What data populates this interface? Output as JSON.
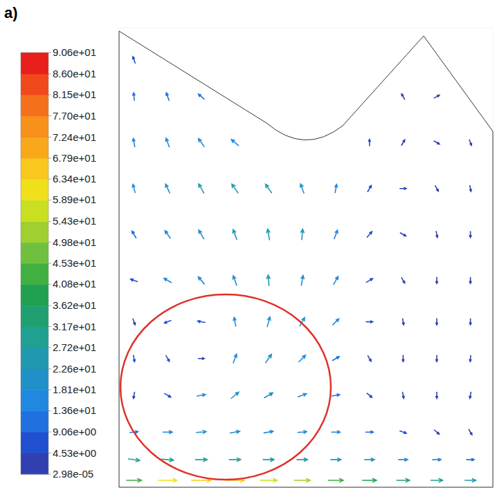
{
  "chart_data": {
    "type": "vector_field",
    "title": "a)",
    "xlim": [
      0,
      1
    ],
    "ylim": [
      0,
      1
    ],
    "tick_labels": false,
    "colorbar": {
      "range": [
        2.98e-05,
        90.6
      ],
      "ticks": [
        {
          "value": 2.98e-05,
          "label": "2.98e-05"
        },
        {
          "value": 4.53,
          "label": "4.53e+00"
        },
        {
          "value": 9.06,
          "label": "9.06e+00"
        },
        {
          "value": 13.6,
          "label": "1.36e+01"
        },
        {
          "value": 18.1,
          "label": "1.81e+01"
        },
        {
          "value": 22.6,
          "label": "2.26e+01"
        },
        {
          "value": 27.2,
          "label": "2.72e+01"
        },
        {
          "value": 31.7,
          "label": "3.17e+01"
        },
        {
          "value": 36.2,
          "label": "3.62e+01"
        },
        {
          "value": 40.8,
          "label": "4.08e+01"
        },
        {
          "value": 45.3,
          "label": "4.53e+01"
        },
        {
          "value": 49.8,
          "label": "4.98e+01"
        },
        {
          "value": 54.3,
          "label": "5.43e+01"
        },
        {
          "value": 58.9,
          "label": "5.89e+01"
        },
        {
          "value": 63.4,
          "label": "6.34e+01"
        },
        {
          "value": 67.9,
          "label": "6.79e+01"
        },
        {
          "value": 72.4,
          "label": "7.24e+01"
        },
        {
          "value": 77.0,
          "label": "7.70e+01"
        },
        {
          "value": 81.5,
          "label": "8.15e+01"
        },
        {
          "value": 86.0,
          "label": "8.60e+01"
        },
        {
          "value": 90.6,
          "label": "9.06e+01"
        }
      ],
      "colors": [
        "#3040b0",
        "#2050d0",
        "#2070e0",
        "#2088e0",
        "#2090c8",
        "#2098b0",
        "#20a090",
        "#20a070",
        "#20a050",
        "#40b040",
        "#70c040",
        "#a0d030",
        "#c8e020",
        "#f0e01c",
        "#f8c81c",
        "#f9a81c",
        "#f8901c",
        "#f5701c",
        "#f04a1c",
        "#e8201c"
      ]
    },
    "vectors": [
      {
        "x": 0.04,
        "y": 0.015,
        "speed": 45,
        "angle": 0
      },
      {
        "x": 0.13,
        "y": 0.015,
        "speed": 62,
        "angle": 0
      },
      {
        "x": 0.22,
        "y": 0.015,
        "speed": 66,
        "angle": 0
      },
      {
        "x": 0.31,
        "y": 0.015,
        "speed": 64,
        "angle": 0
      },
      {
        "x": 0.4,
        "y": 0.015,
        "speed": 55,
        "angle": 0
      },
      {
        "x": 0.49,
        "y": 0.015,
        "speed": 50,
        "angle": 0
      },
      {
        "x": 0.58,
        "y": 0.015,
        "speed": 45,
        "angle": 0
      },
      {
        "x": 0.67,
        "y": 0.015,
        "speed": 40,
        "angle": 0
      },
      {
        "x": 0.76,
        "y": 0.015,
        "speed": 35,
        "angle": 0
      },
      {
        "x": 0.85,
        "y": 0.015,
        "speed": 30,
        "angle": 0
      },
      {
        "x": 0.94,
        "y": 0.015,
        "speed": 25,
        "angle": 0
      },
      {
        "x": 0.04,
        "y": 0.06,
        "speed": 28,
        "angle": -8
      },
      {
        "x": 0.13,
        "y": 0.06,
        "speed": 30,
        "angle": -5
      },
      {
        "x": 0.22,
        "y": 0.06,
        "speed": 30,
        "angle": 0
      },
      {
        "x": 0.31,
        "y": 0.06,
        "speed": 28,
        "angle": 0
      },
      {
        "x": 0.4,
        "y": 0.06,
        "speed": 26,
        "angle": 0
      },
      {
        "x": 0.49,
        "y": 0.06,
        "speed": 24,
        "angle": 0
      },
      {
        "x": 0.58,
        "y": 0.06,
        "speed": 22,
        "angle": 0
      },
      {
        "x": 0.67,
        "y": 0.06,
        "speed": 20,
        "angle": 0
      },
      {
        "x": 0.76,
        "y": 0.06,
        "speed": 17,
        "angle": 0
      },
      {
        "x": 0.85,
        "y": 0.06,
        "speed": 14,
        "angle": 0
      },
      {
        "x": 0.94,
        "y": 0.06,
        "speed": 10,
        "angle": 0
      },
      {
        "x": 0.04,
        "y": 0.12,
        "speed": 12,
        "angle": 5
      },
      {
        "x": 0.13,
        "y": 0.12,
        "speed": 18,
        "angle": 0
      },
      {
        "x": 0.22,
        "y": 0.12,
        "speed": 20,
        "angle": 5
      },
      {
        "x": 0.31,
        "y": 0.12,
        "speed": 20,
        "angle": 10
      },
      {
        "x": 0.4,
        "y": 0.12,
        "speed": 18,
        "angle": 10
      },
      {
        "x": 0.49,
        "y": 0.12,
        "speed": 16,
        "angle": 5
      },
      {
        "x": 0.58,
        "y": 0.12,
        "speed": 14,
        "angle": 0
      },
      {
        "x": 0.67,
        "y": 0.12,
        "speed": 10,
        "angle": 0
      },
      {
        "x": 0.76,
        "y": 0.12,
        "speed": 6,
        "angle": -20
      },
      {
        "x": 0.85,
        "y": 0.12,
        "speed": 4,
        "angle": -40
      },
      {
        "x": 0.94,
        "y": 0.12,
        "speed": 3,
        "angle": -60
      },
      {
        "x": 0.04,
        "y": 0.2,
        "speed": 4,
        "angle": -100
      },
      {
        "x": 0.13,
        "y": 0.2,
        "speed": 8,
        "angle": -30
      },
      {
        "x": 0.22,
        "y": 0.2,
        "speed": 14,
        "angle": 10
      },
      {
        "x": 0.31,
        "y": 0.2,
        "speed": 20,
        "angle": 40
      },
      {
        "x": 0.4,
        "y": 0.2,
        "speed": 20,
        "angle": 30
      },
      {
        "x": 0.49,
        "y": 0.2,
        "speed": 16,
        "angle": 20
      },
      {
        "x": 0.58,
        "y": 0.2,
        "speed": 10,
        "angle": 10
      },
      {
        "x": 0.67,
        "y": 0.2,
        "speed": 4,
        "angle": -40
      },
      {
        "x": 0.76,
        "y": 0.2,
        "speed": 3,
        "angle": -80
      },
      {
        "x": 0.85,
        "y": 0.2,
        "speed": 3,
        "angle": -90
      },
      {
        "x": 0.94,
        "y": 0.2,
        "speed": 3,
        "angle": -100
      },
      {
        "x": 0.04,
        "y": 0.28,
        "speed": 5,
        "angle": -80
      },
      {
        "x": 0.13,
        "y": 0.28,
        "speed": 5,
        "angle": -60
      },
      {
        "x": 0.22,
        "y": 0.28,
        "speed": 2,
        "angle": 0
      },
      {
        "x": 0.31,
        "y": 0.28,
        "speed": 18,
        "angle": 70
      },
      {
        "x": 0.4,
        "y": 0.28,
        "speed": 22,
        "angle": 55
      },
      {
        "x": 0.49,
        "y": 0.28,
        "speed": 18,
        "angle": 45
      },
      {
        "x": 0.58,
        "y": 0.28,
        "speed": 10,
        "angle": 30
      },
      {
        "x": 0.67,
        "y": 0.28,
        "speed": 4,
        "angle": -60
      },
      {
        "x": 0.76,
        "y": 0.28,
        "speed": 3,
        "angle": -90
      },
      {
        "x": 0.85,
        "y": 0.28,
        "speed": 3,
        "angle": -90
      },
      {
        "x": 0.94,
        "y": 0.28,
        "speed": 2,
        "angle": -95
      },
      {
        "x": 0.04,
        "y": 0.36,
        "speed": 4,
        "angle": -70
      },
      {
        "x": 0.13,
        "y": 0.36,
        "speed": 7,
        "angle": 200
      },
      {
        "x": 0.22,
        "y": 0.36,
        "speed": 9,
        "angle": 170
      },
      {
        "x": 0.31,
        "y": 0.36,
        "speed": 16,
        "angle": 100
      },
      {
        "x": 0.4,
        "y": 0.36,
        "speed": 22,
        "angle": 75
      },
      {
        "x": 0.49,
        "y": 0.36,
        "speed": 20,
        "angle": 60
      },
      {
        "x": 0.58,
        "y": 0.36,
        "speed": 14,
        "angle": 45
      },
      {
        "x": 0.67,
        "y": 0.36,
        "speed": 5,
        "angle": 0
      },
      {
        "x": 0.76,
        "y": 0.36,
        "speed": 3,
        "angle": -80
      },
      {
        "x": 0.85,
        "y": 0.36,
        "speed": 3,
        "angle": -90
      },
      {
        "x": 0.94,
        "y": 0.36,
        "speed": 2,
        "angle": -90
      },
      {
        "x": 0.04,
        "y": 0.45,
        "speed": 8,
        "angle": 160
      },
      {
        "x": 0.13,
        "y": 0.45,
        "speed": 14,
        "angle": 150
      },
      {
        "x": 0.22,
        "y": 0.45,
        "speed": 18,
        "angle": 130
      },
      {
        "x": 0.31,
        "y": 0.45,
        "speed": 22,
        "angle": 110
      },
      {
        "x": 0.4,
        "y": 0.45,
        "speed": 24,
        "angle": 95
      },
      {
        "x": 0.49,
        "y": 0.45,
        "speed": 22,
        "angle": 80
      },
      {
        "x": 0.58,
        "y": 0.45,
        "speed": 16,
        "angle": 60
      },
      {
        "x": 0.67,
        "y": 0.45,
        "speed": 8,
        "angle": 30
      },
      {
        "x": 0.76,
        "y": 0.45,
        "speed": 3,
        "angle": -60
      },
      {
        "x": 0.85,
        "y": 0.45,
        "speed": 3,
        "angle": -90
      },
      {
        "x": 0.94,
        "y": 0.45,
        "speed": 2,
        "angle": -90
      },
      {
        "x": 0.04,
        "y": 0.55,
        "speed": 12,
        "angle": 120
      },
      {
        "x": 0.13,
        "y": 0.55,
        "speed": 18,
        "angle": 125
      },
      {
        "x": 0.22,
        "y": 0.55,
        "speed": 22,
        "angle": 120
      },
      {
        "x": 0.31,
        "y": 0.55,
        "speed": 24,
        "angle": 110
      },
      {
        "x": 0.4,
        "y": 0.55,
        "speed": 25,
        "angle": 100
      },
      {
        "x": 0.49,
        "y": 0.55,
        "speed": 24,
        "angle": 85
      },
      {
        "x": 0.58,
        "y": 0.55,
        "speed": 18,
        "angle": 70
      },
      {
        "x": 0.67,
        "y": 0.55,
        "speed": 9,
        "angle": 50
      },
      {
        "x": 0.76,
        "y": 0.55,
        "speed": 4,
        "angle": -30
      },
      {
        "x": 0.85,
        "y": 0.55,
        "speed": 3,
        "angle": -80
      },
      {
        "x": 0.94,
        "y": 0.55,
        "speed": 2,
        "angle": -90
      },
      {
        "x": 0.04,
        "y": 0.65,
        "speed": 14,
        "angle": 105
      },
      {
        "x": 0.13,
        "y": 0.65,
        "speed": 20,
        "angle": 115
      },
      {
        "x": 0.22,
        "y": 0.65,
        "speed": 24,
        "angle": 120
      },
      {
        "x": 0.31,
        "y": 0.65,
        "speed": 25,
        "angle": 125
      },
      {
        "x": 0.4,
        "y": 0.65,
        "speed": 24,
        "angle": 125
      },
      {
        "x": 0.49,
        "y": 0.65,
        "speed": 20,
        "angle": 110
      },
      {
        "x": 0.58,
        "y": 0.65,
        "speed": 14,
        "angle": 80
      },
      {
        "x": 0.67,
        "y": 0.65,
        "speed": 8,
        "angle": 60
      },
      {
        "x": 0.76,
        "y": 0.65,
        "speed": 4,
        "angle": 0
      },
      {
        "x": 0.85,
        "y": 0.65,
        "speed": 3,
        "angle": -60
      },
      {
        "x": 0.94,
        "y": 0.65,
        "speed": 2,
        "angle": -80
      },
      {
        "x": 0.04,
        "y": 0.75,
        "speed": 14,
        "angle": 100
      },
      {
        "x": 0.13,
        "y": 0.75,
        "speed": 18,
        "angle": 110
      },
      {
        "x": 0.22,
        "y": 0.75,
        "speed": 20,
        "angle": 125
      },
      {
        "x": 0.31,
        "y": 0.75,
        "speed": 18,
        "angle": 140
      },
      {
        "x": 0.67,
        "y": 0.75,
        "speed": 5,
        "angle": 90
      },
      {
        "x": 0.76,
        "y": 0.75,
        "speed": 4,
        "angle": 60
      },
      {
        "x": 0.85,
        "y": 0.75,
        "speed": 3,
        "angle": -30
      },
      {
        "x": 0.94,
        "y": 0.75,
        "speed": 2,
        "angle": -70
      },
      {
        "x": 0.04,
        "y": 0.85,
        "speed": 10,
        "angle": 95
      },
      {
        "x": 0.13,
        "y": 0.85,
        "speed": 12,
        "angle": 110
      },
      {
        "x": 0.22,
        "y": 0.85,
        "speed": 10,
        "angle": 140
      },
      {
        "x": 0.76,
        "y": 0.85,
        "speed": 3,
        "angle": 120
      },
      {
        "x": 0.85,
        "y": 0.85,
        "speed": 2,
        "angle": 30
      },
      {
        "x": 0.04,
        "y": 0.93,
        "speed": 6,
        "angle": 110
      }
    ]
  }
}
